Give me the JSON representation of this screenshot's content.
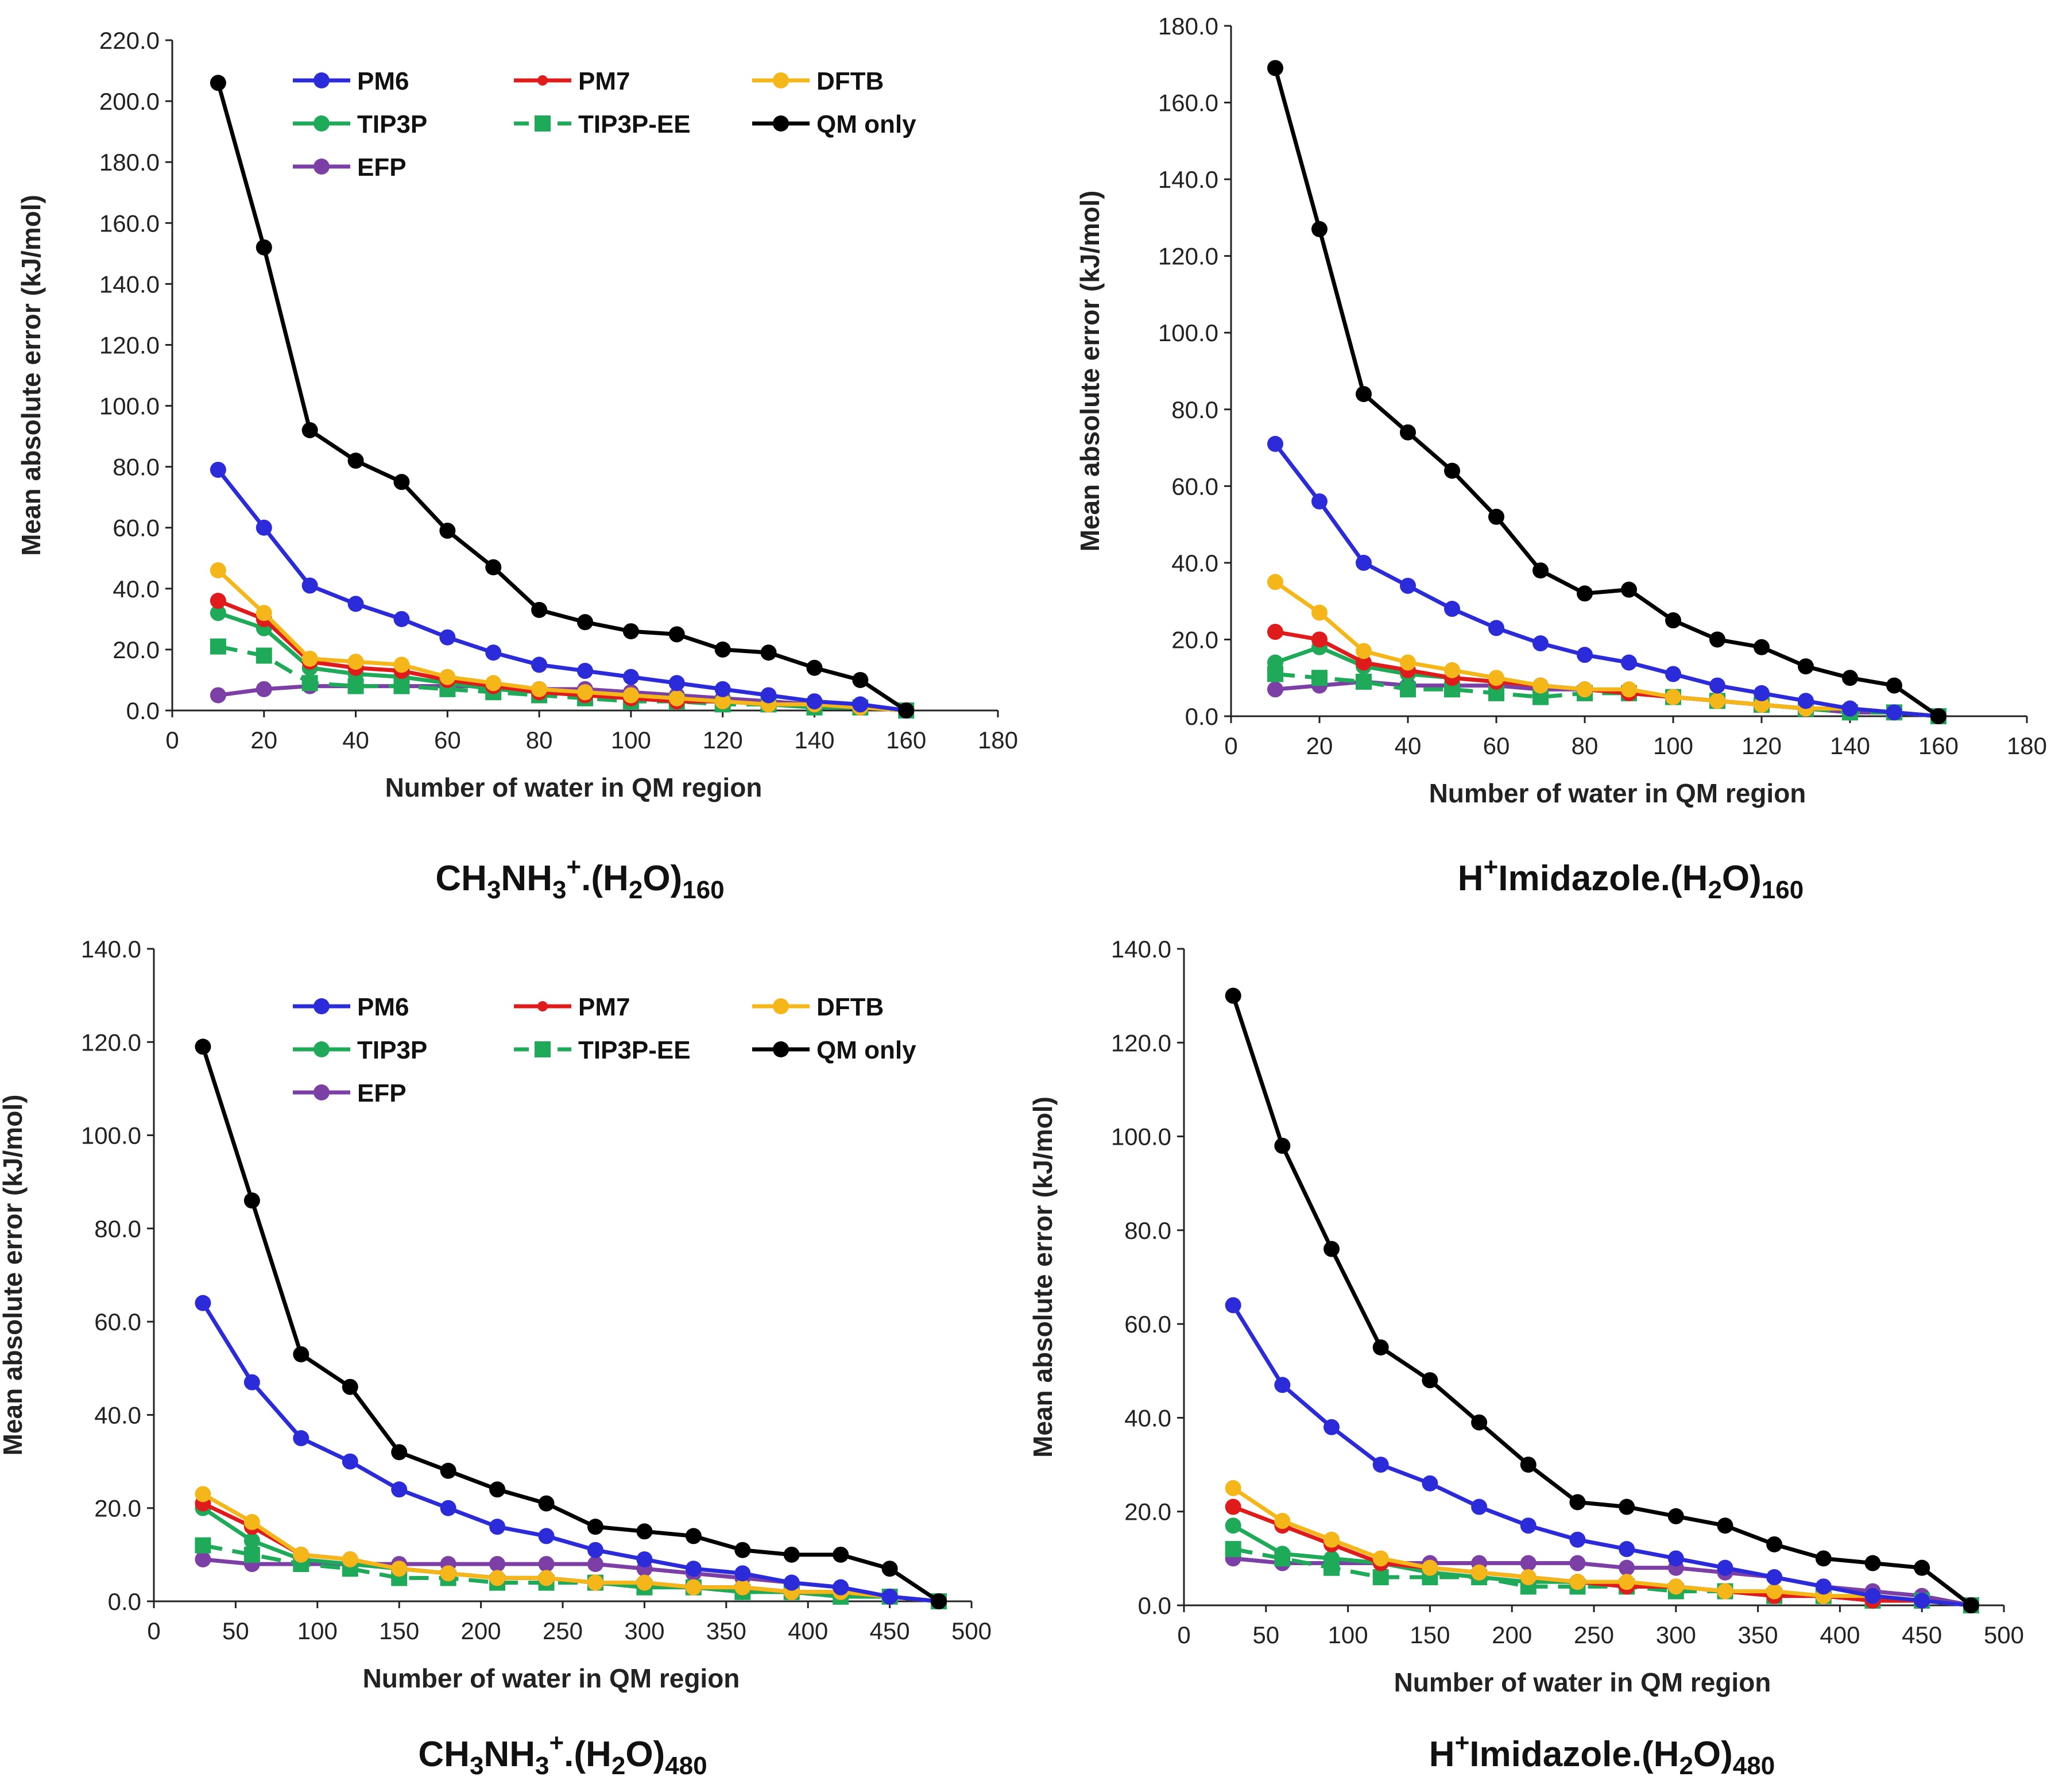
{
  "colors": {
    "PM6": "#2b2bd9",
    "PM7": "#e01b1b",
    "DFTB": "#f4b619",
    "TIP3P": "#1faa5a",
    "TIP3P-EE": "#1faa5a",
    "QM only": "#000000",
    "EFP": "#7b3fa6",
    "PM6_light": "#3a4fe0"
  },
  "chart_data": [
    {
      "type": "line",
      "caption": {
        "base1": "CH",
        "sub1": "3",
        "base2": "NH",
        "sub2": "3",
        "sup": "+",
        "base3": ".(H",
        "sub3": "2",
        "base4": "O)",
        "sub4": "160"
      },
      "xlabel": "Number of water in QM region",
      "ylabel": "Mean absolute error (kJ/mol)",
      "xlim": [
        0,
        180
      ],
      "ylim": [
        0,
        220
      ],
      "xticks": [
        "0",
        "20",
        "40",
        "60",
        "80",
        "100",
        "120",
        "140",
        "160",
        "180"
      ],
      "yticks": [
        "0.0",
        "20.0",
        "40.0",
        "60.0",
        "80.0",
        "100.0",
        "120.0",
        "140.0",
        "160.0",
        "180.0",
        "200.0",
        "220.0"
      ],
      "legend": [
        "PM6",
        "PM7",
        "DFTB",
        "TIP3P",
        "TIP3P-EE",
        "QM only",
        "EFP"
      ],
      "x": [
        10,
        20,
        30,
        40,
        50,
        60,
        70,
        80,
        90,
        100,
        110,
        120,
        130,
        140,
        150,
        160
      ],
      "series": [
        {
          "name": "QM only",
          "values": [
            206,
            152,
            92,
            82,
            75,
            59,
            47,
            33,
            29,
            26,
            25,
            20,
            19,
            14,
            10,
            0
          ]
        },
        {
          "name": "PM6",
          "values": [
            79,
            60,
            41,
            35,
            30,
            24,
            19,
            15,
            13,
            11,
            9,
            7,
            5,
            3,
            2,
            0
          ]
        },
        {
          "name": "DFTB",
          "values": [
            46,
            32,
            17,
            16,
            15,
            11,
            9,
            7,
            6,
            5,
            4,
            3,
            2,
            2,
            1,
            0
          ]
        },
        {
          "name": "PM7",
          "values": [
            36,
            30,
            16,
            14,
            13,
            10,
            8,
            6,
            5,
            4,
            3,
            3,
            2,
            2,
            1,
            0
          ]
        },
        {
          "name": "TIP3P",
          "values": [
            32,
            27,
            14,
            12,
            11,
            9,
            7,
            6,
            5,
            4,
            3,
            3,
            2,
            1,
            1,
            0
          ]
        },
        {
          "name": "TIP3P-EE",
          "values": [
            21,
            18,
            9,
            8,
            8,
            7,
            6,
            5,
            4,
            3,
            3,
            2,
            2,
            1,
            1,
            0
          ]
        },
        {
          "name": "EFP",
          "values": [
            5,
            7,
            8,
            8,
            8,
            8,
            8,
            7,
            7,
            6,
            5,
            4,
            3,
            2,
            1,
            0
          ]
        }
      ]
    },
    {
      "type": "line",
      "caption": {
        "sup1": "+",
        "base": "Imidazole.(H",
        "sub3": "2",
        "base4": "O)",
        "sub4": "160",
        "lead": "H"
      },
      "xlabel": "Number of water in QM region",
      "ylabel": "Mean absolute error (kJ/mol)",
      "xlim": [
        0,
        180
      ],
      "ylim": [
        0,
        180
      ],
      "xticks": [
        "0",
        "20",
        "40",
        "60",
        "80",
        "100",
        "120",
        "140",
        "160",
        "180"
      ],
      "yticks": [
        "0.0",
        "20.0",
        "40.0",
        "60.0",
        "80.0",
        "100.0",
        "120.0",
        "140.0",
        "160.0",
        "180.0"
      ],
      "x": [
        10,
        20,
        30,
        40,
        50,
        60,
        70,
        80,
        90,
        100,
        110,
        120,
        130,
        140,
        150,
        160
      ],
      "series": [
        {
          "name": "QM only",
          "values": [
            169,
            127,
            84,
            74,
            64,
            52,
            38,
            32,
            33,
            25,
            20,
            18,
            13,
            10,
            8,
            0
          ]
        },
        {
          "name": "PM6",
          "values": [
            71,
            56,
            40,
            34,
            28,
            23,
            19,
            16,
            14,
            11,
            8,
            6,
            4,
            2,
            1,
            0
          ]
        },
        {
          "name": "DFTB",
          "values": [
            35,
            27,
            17,
            14,
            12,
            10,
            8,
            7,
            7,
            5,
            4,
            3,
            2,
            2,
            1,
            0
          ]
        },
        {
          "name": "PM7",
          "values": [
            22,
            20,
            14,
            12,
            10,
            9,
            8,
            7,
            6,
            5,
            4,
            3,
            2,
            2,
            1,
            0
          ]
        },
        {
          "name": "TIP3P",
          "values": [
            14,
            18,
            13,
            11,
            10,
            9,
            8,
            7,
            6,
            5,
            4,
            3,
            2,
            2,
            1,
            0
          ]
        },
        {
          "name": "TIP3P-EE",
          "values": [
            11,
            10,
            9,
            7,
            7,
            6,
            5,
            6,
            6,
            5,
            4,
            3,
            2,
            1,
            1,
            0
          ]
        },
        {
          "name": "EFP",
          "values": [
            7,
            8,
            9,
            8,
            8,
            8,
            7,
            7,
            6,
            5,
            4,
            3,
            2,
            1,
            1,
            0
          ]
        }
      ]
    },
    {
      "type": "line",
      "caption": {
        "base1": "CH",
        "sub1": "3",
        "base2": "NH",
        "sub2": "3",
        "sup": "+",
        "base3": ".(H",
        "sub3": "2",
        "base4": "O)",
        "sub4": "480"
      },
      "xlabel": "Number of water in QM region",
      "ylabel": "Mean absolute error (kJ/mol)",
      "xlim": [
        0,
        500
      ],
      "ylim": [
        0,
        140
      ],
      "xticks": [
        "0",
        "50",
        "100",
        "150",
        "200",
        "250",
        "300",
        "350",
        "400",
        "450",
        "500"
      ],
      "yticks": [
        "0.0",
        "20.0",
        "40.0",
        "60.0",
        "80.0",
        "100.0",
        "120.0",
        "140.0"
      ],
      "legend": [
        "PM6",
        "PM7",
        "DFTB",
        "TIP3P",
        "TIP3P-EE",
        "QM only",
        "EFP"
      ],
      "x": [
        30,
        60,
        90,
        120,
        150,
        180,
        210,
        240,
        270,
        300,
        330,
        360,
        390,
        420,
        450,
        480
      ],
      "series": [
        {
          "name": "QM only",
          "values": [
            119,
            86,
            53,
            46,
            32,
            28,
            24,
            21,
            16,
            15,
            14,
            11,
            10,
            10,
            7,
            0
          ]
        },
        {
          "name": "PM6",
          "values": [
            64,
            47,
            35,
            30,
            24,
            20,
            16,
            14,
            11,
            9,
            7,
            6,
            4,
            3,
            1,
            0
          ]
        },
        {
          "name": "DFTB",
          "values": [
            23,
            17,
            10,
            9,
            7,
            6,
            5,
            5,
            4,
            4,
            3,
            3,
            2,
            2,
            1,
            0
          ]
        },
        {
          "name": "PM7",
          "values": [
            21,
            16,
            10,
            9,
            7,
            6,
            5,
            5,
            4,
            4,
            3,
            3,
            2,
            2,
            1,
            0
          ]
        },
        {
          "name": "TIP3P",
          "values": [
            20,
            13,
            9,
            8,
            7,
            6,
            5,
            5,
            4,
            3,
            3,
            2,
            2,
            1,
            1,
            0
          ]
        },
        {
          "name": "TIP3P-EE",
          "values": [
            12,
            10,
            8,
            7,
            5,
            5,
            4,
            4,
            4,
            3,
            3,
            2,
            2,
            1,
            1,
            0
          ]
        },
        {
          "name": "EFP",
          "values": [
            9,
            8,
            8,
            8,
            8,
            8,
            8,
            8,
            8,
            7,
            6,
            5,
            4,
            3,
            1,
            0
          ]
        }
      ]
    },
    {
      "type": "line",
      "caption": {
        "lead": "H",
        "sup1": "+",
        "base": "Imidazole.(H",
        "sub3": "2",
        "base4": "O)",
        "sub4": "480"
      },
      "xlabel": "Number of water in QM region",
      "ylabel": "Mean absolute error (kJ/mol)",
      "xlim": [
        0,
        500
      ],
      "ylim": [
        0,
        140
      ],
      "xticks": [
        "0",
        "50",
        "100",
        "150",
        "200",
        "250",
        "300",
        "350",
        "400",
        "450",
        "500"
      ],
      "yticks": [
        "0.0",
        "20.0",
        "40.0",
        "60.0",
        "80.0",
        "100.0",
        "120.0",
        "140.0"
      ],
      "x": [
        30,
        60,
        90,
        120,
        150,
        180,
        210,
        240,
        270,
        300,
        330,
        360,
        390,
        420,
        450,
        480
      ],
      "series": [
        {
          "name": "QM only",
          "values": [
            130,
            98,
            76,
            55,
            48,
            39,
            30,
            22,
            21,
            19,
            17,
            13,
            10,
            9,
            8,
            0
          ]
        },
        {
          "name": "PM6",
          "values": [
            64,
            47,
            38,
            30,
            26,
            21,
            17,
            14,
            12,
            10,
            8,
            6,
            4,
            2,
            1,
            0
          ]
        },
        {
          "name": "DFTB",
          "values": [
            25,
            18,
            14,
            10,
            8,
            7,
            6,
            5,
            5,
            4,
            3,
            3,
            2,
            2,
            1,
            0
          ]
        },
        {
          "name": "PM7",
          "values": [
            21,
            17,
            13,
            9,
            8,
            7,
            6,
            5,
            4,
            4,
            3,
            2,
            2,
            1,
            1,
            0
          ]
        },
        {
          "name": "TIP3P",
          "values": [
            17,
            11,
            10,
            9,
            7,
            6,
            5,
            5,
            4,
            4,
            3,
            2,
            2,
            1,
            1,
            0
          ]
        },
        {
          "name": "TIP3P-EE",
          "values": [
            12,
            10,
            8,
            6,
            6,
            6,
            4,
            4,
            4,
            3,
            3,
            2,
            2,
            1,
            1,
            0
          ]
        },
        {
          "name": "EFP",
          "values": [
            10,
            9,
            9,
            9,
            9,
            9,
            9,
            9,
            8,
            8,
            7,
            6,
            4,
            3,
            2,
            0
          ]
        }
      ]
    }
  ]
}
